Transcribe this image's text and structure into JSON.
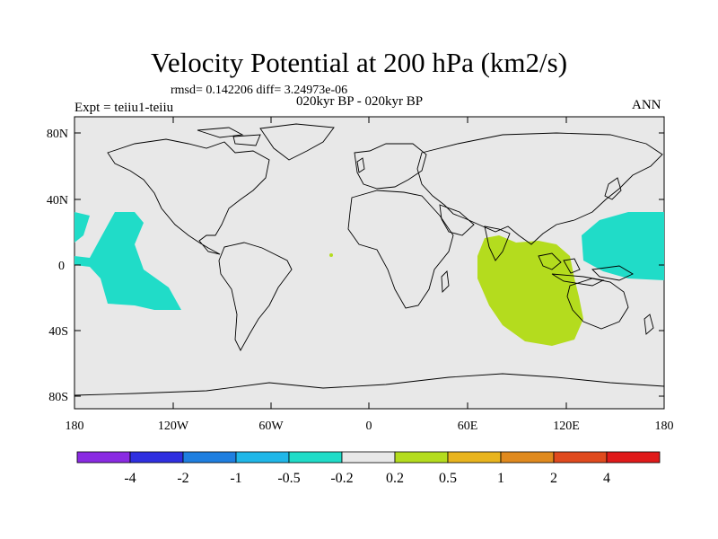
{
  "title": "Velocity Potential at 200 hPa (km2/s)",
  "stats": "rmsd= 0.142206 diff= 3.24973e-06",
  "period": "020kyr BP - 020kyr BP",
  "experiment": "Expt = teiiu1-teiiu",
  "season": "ANN",
  "y_ticks": [
    "80N",
    "40N",
    "0",
    "40S",
    "80S"
  ],
  "x_ticks": [
    "180",
    "120W",
    "60W",
    "0",
    "60E",
    "120E",
    "180"
  ],
  "colorbar": {
    "colors": [
      "#8a2be2",
      "#2f2fe0",
      "#1f7fe0",
      "#20b7e8",
      "#20dcc8",
      "#e8e8e8",
      "#b4dc1e",
      "#e8b41e",
      "#e08a1e",
      "#e04a1e",
      "#e01a1a"
    ],
    "labels": [
      "-4",
      "-2",
      "-1",
      "-0.5",
      "-0.2",
      "0.2",
      "0.5",
      "1",
      "2",
      "4"
    ]
  },
  "map_style": {
    "background": "#e8e8e8",
    "coastline": "#000000",
    "negative_fill": "#20dcc8",
    "positive_fill": "#b4dc1e"
  }
}
